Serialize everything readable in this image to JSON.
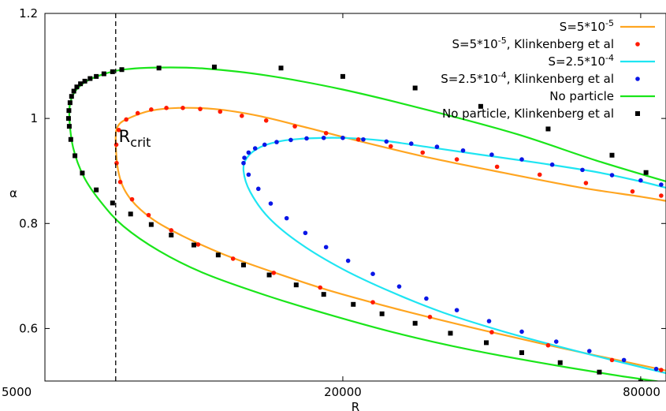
{
  "chart_data": {
    "type": "line",
    "xlabel": "R",
    "ylabel": "α",
    "xscale": "log",
    "xlim": [
      5000,
      90000
    ],
    "ylim": [
      0.5,
      1.2
    ],
    "xticks": [
      {
        "value": 5000,
        "label": "5000"
      },
      {
        "value": 20000,
        "label": "20000"
      },
      {
        "value": 80000,
        "label": "80000"
      }
    ],
    "yticks": [
      {
        "value": 0.6,
        "label": "0.6"
      },
      {
        "value": 0.8,
        "label": "0.8"
      },
      {
        "value": 1.0,
        "label": "1"
      },
      {
        "value": 1.2,
        "label": "1.2"
      }
    ],
    "legend_position": "top-right",
    "vline": {
      "x": 6950,
      "style": "dashed",
      "color": "#000000"
    },
    "annotation": {
      "text": "R",
      "subscript": "crit",
      "x": 7050,
      "y": 0.955
    },
    "series": [
      {
        "name": "S=5*10^-5",
        "legend_base": "S=5*10",
        "legend_exp": "-5",
        "legend_suffix": "",
        "kind": "line",
        "color": "#FFA520",
        "x": [
          90000,
          70000,
          50000,
          36000,
          26000,
          19000,
          14500,
          11500,
          9500,
          8200,
          7400,
          7050,
          6950,
          7050,
          7500,
          8200,
          9300,
          11000,
          13500,
          17000,
          22000,
          30000,
          42000,
          60000,
          80000,
          90000
        ],
        "y": [
          0.52,
          0.542,
          0.572,
          0.603,
          0.636,
          0.671,
          0.707,
          0.741,
          0.776,
          0.81,
          0.85,
          0.895,
          0.96,
          0.988,
          1.003,
          1.015,
          1.02,
          1.018,
          1.005,
          0.982,
          0.955,
          0.925,
          0.897,
          0.869,
          0.851,
          0.843
        ]
      },
      {
        "name": "S=5*10^-5, Klinkenberg et al",
        "legend_base": "S=5*10",
        "legend_exp": "-5",
        "legend_suffix": ", Klinkenberg et al",
        "kind": "points",
        "marker": "circle",
        "color": "#FF1A00",
        "x": [
          88000,
          70000,
          52000,
          40000,
          30000,
          23000,
          18000,
          14500,
          12000,
          10200,
          9000,
          8100,
          7500,
          7100,
          6980,
          6970,
          7050,
          7300,
          7700,
          8200,
          8800,
          9500,
          10300,
          11300,
          12500,
          14000,
          16000,
          18500,
          21500,
          25000,
          29000,
          34000,
          41000,
          50000,
          62000,
          77000,
          88000
        ],
        "y": [
          0.521,
          0.54,
          0.568,
          0.593,
          0.622,
          0.65,
          0.678,
          0.706,
          0.733,
          0.76,
          0.787,
          0.816,
          0.846,
          0.879,
          0.915,
          0.95,
          0.978,
          0.998,
          1.01,
          1.017,
          1.02,
          1.02,
          1.018,
          1.013,
          1.005,
          0.996,
          0.985,
          0.972,
          0.96,
          0.947,
          0.935,
          0.922,
          0.908,
          0.893,
          0.877,
          0.861,
          0.853
        ]
      },
      {
        "name": "S=2.5*10^-4",
        "legend_base": "S=2.5*10",
        "legend_exp": "-4",
        "legend_suffix": "",
        "kind": "line",
        "color": "#1FE5F2",
        "x": [
          90000,
          70000,
          55000,
          42000,
          32000,
          25000,
          20000,
          16500,
          14200,
          13000,
          12600,
          12800,
          13600,
          15000,
          17000,
          20000,
          24000,
          30000,
          38000,
          50000,
          65000,
          80000,
          90000
        ],
        "y": [
          0.515,
          0.54,
          0.565,
          0.595,
          0.63,
          0.67,
          0.713,
          0.76,
          0.81,
          0.86,
          0.9,
          0.925,
          0.945,
          0.957,
          0.962,
          0.963,
          0.958,
          0.945,
          0.931,
          0.915,
          0.898,
          0.88,
          0.868
        ]
      },
      {
        "name": "S=2.5*10^-4, Klinkenberg et al",
        "legend_base": "S=2.5*10",
        "legend_exp": "-4",
        "legend_suffix": ", Klinkenberg et al",
        "kind": "points",
        "marker": "circle",
        "color": "#0A16E6",
        "x": [
          86000,
          74000,
          63000,
          54000,
          46000,
          39500,
          34000,
          29500,
          26000,
          23000,
          20500,
          18500,
          16800,
          15400,
          14300,
          13500,
          12900,
          12600,
          12650,
          12900,
          13300,
          13900,
          14700,
          15700,
          16900,
          18300,
          20000,
          22000,
          24500,
          27500,
          31000,
          35000,
          40000,
          46000,
          53000,
          61000,
          70000,
          80000,
          88000
        ],
        "y": [
          0.523,
          0.54,
          0.557,
          0.575,
          0.594,
          0.614,
          0.635,
          0.657,
          0.68,
          0.704,
          0.729,
          0.755,
          0.782,
          0.81,
          0.838,
          0.866,
          0.893,
          0.915,
          0.925,
          0.935,
          0.943,
          0.95,
          0.955,
          0.959,
          0.962,
          0.963,
          0.963,
          0.96,
          0.956,
          0.952,
          0.946,
          0.939,
          0.931,
          0.922,
          0.912,
          0.902,
          0.892,
          0.882,
          0.874
        ]
      },
      {
        "name": "No particle",
        "legend_base": "No particle",
        "legend_exp": "",
        "legend_suffix": "",
        "kind": "line",
        "color": "#1AE51A",
        "x": [
          90000,
          70000,
          50000,
          36000,
          26000,
          19000,
          14000,
          10500,
          8500,
          7200,
          6500,
          6000,
          5700,
          5600,
          5700,
          6000,
          6500,
          7200,
          8500,
          10500,
          14000,
          20000,
          30000,
          45000,
          65000,
          90000
        ],
        "y": [
          0.497,
          0.512,
          0.535,
          0.56,
          0.59,
          0.625,
          0.663,
          0.705,
          0.748,
          0.795,
          0.84,
          0.888,
          0.945,
          1.01,
          1.045,
          1.068,
          1.083,
          1.093,
          1.097,
          1.095,
          1.082,
          1.055,
          1.015,
          0.97,
          0.92,
          0.88
        ]
      },
      {
        "name": "No particle, Klinkenberg et al",
        "legend_base": "No particle, Klinkenberg et al",
        "legend_exp": "",
        "legend_suffix": "",
        "kind": "points",
        "marker": "square",
        "color": "#000000",
        "x": [
          80000,
          66000,
          55000,
          46000,
          39000,
          33000,
          28000,
          24000,
          21000,
          18300,
          16100,
          14200,
          12600,
          11200,
          10000,
          9000,
          8200,
          7450,
          6850,
          6350,
          5950,
          5750,
          5640,
          5600,
          5580,
          5590,
          5620,
          5660,
          5720,
          5800,
          5900,
          6020,
          6170,
          6350,
          6580,
          6850,
          7150,
          8500,
          11000,
          15000,
          20000,
          28000,
          38000,
          52000,
          70000,
          82000
        ],
        "y": [
          0.498,
          0.517,
          0.535,
          0.554,
          0.573,
          0.591,
          0.61,
          0.628,
          0.646,
          0.665,
          0.683,
          0.702,
          0.721,
          0.74,
          0.759,
          0.778,
          0.798,
          0.818,
          0.839,
          0.864,
          0.896,
          0.929,
          0.96,
          0.985,
          1.0,
          1.015,
          1.03,
          1.042,
          1.052,
          1.06,
          1.066,
          1.071,
          1.076,
          1.08,
          1.085,
          1.089,
          1.093,
          1.096,
          1.098,
          1.096,
          1.08,
          1.058,
          1.023,
          0.98,
          0.93,
          0.897
        ]
      }
    ]
  }
}
